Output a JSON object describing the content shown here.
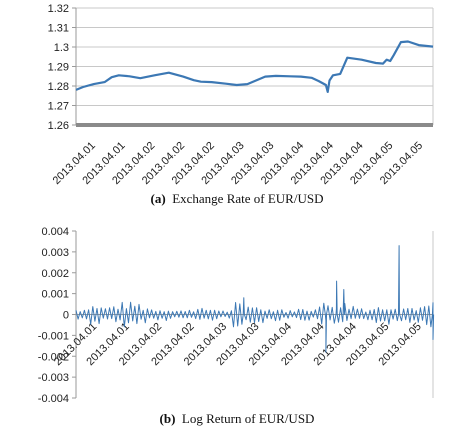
{
  "chart_data": [
    {
      "type": "line",
      "caption_tag": "(a)",
      "caption_text": "Exchange Rate of EUR/USD",
      "ylim": [
        1.26,
        1.32
      ],
      "yticks": [
        1.26,
        1.27,
        1.28,
        1.29,
        1.3,
        1.31,
        1.32
      ],
      "ytick_labels": [
        "1.26",
        "1.27",
        "1.28",
        "1.29",
        "1.3",
        "1.31",
        "1.32"
      ],
      "xtick_labels": [
        "2013.04.01",
        "2013.04.01",
        "2013.04.02",
        "2013.04.02",
        "2013.04.02",
        "2013.04.03",
        "2013.04.03",
        "2013.04.04",
        "2013.04.04",
        "2013.04.04",
        "2013.04.05",
        "2013.04.05"
      ],
      "grid": true,
      "color": "#3c78b4",
      "series": [
        {
          "x": [
            0,
            0.02,
            0.05,
            0.08,
            0.1,
            0.12,
            0.15,
            0.18,
            0.22,
            0.26,
            0.3,
            0.33,
            0.35,
            0.38,
            0.42,
            0.45,
            0.48,
            0.5,
            0.53,
            0.56,
            0.6,
            0.63,
            0.66,
            0.68,
            0.7,
            0.705,
            0.71,
            0.72,
            0.74,
            0.76,
            0.8,
            0.84,
            0.86,
            0.87,
            0.88,
            0.89,
            0.91,
            0.93,
            0.96,
            1.0
          ],
          "values": [
            1.278,
            1.2795,
            1.281,
            1.282,
            1.2845,
            1.2855,
            1.285,
            1.284,
            1.2855,
            1.2868,
            1.2848,
            1.283,
            1.2822,
            1.282,
            1.2812,
            1.2805,
            1.281,
            1.2825,
            1.2848,
            1.2852,
            1.285,
            1.2848,
            1.2842,
            1.2825,
            1.2805,
            1.277,
            1.2828,
            1.2855,
            1.2862,
            1.2945,
            1.2935,
            1.2918,
            1.2915,
            1.2935,
            1.2928,
            1.2958,
            1.3025,
            1.3028,
            1.301,
            1.3002
          ]
        }
      ]
    },
    {
      "type": "line",
      "caption_tag": "(b)",
      "caption_text": "Log Return of EUR/USD",
      "ylim": [
        -0.004,
        0.004
      ],
      "yticks": [
        -0.004,
        -0.003,
        -0.002,
        -0.001,
        0,
        0.001,
        0.002,
        0.003,
        0.004
      ],
      "ytick_labels": [
        "-0.004",
        "-0.003",
        "-0.002",
        "-0.001",
        "0",
        "0.001",
        "0.002",
        "0.003",
        "0.004"
      ],
      "xtick_labels": [
        "2013.04.01",
        "2013.04.01",
        "2013.04.02",
        "2013.04.02",
        "2013.04.03",
        "2013.04.03",
        "2013.04.04",
        "2013.04.04",
        "2013.04.04",
        "2013.04.05",
        "2013.04.05"
      ],
      "grid": false,
      "color": "#3c78b4",
      "series": [
        {
          "x": [
            0.0,
            0.03,
            0.05,
            0.07,
            0.1,
            0.12,
            0.15,
            0.18,
            0.2,
            0.22,
            0.26,
            0.3,
            0.33,
            0.36,
            0.4,
            0.44,
            0.47,
            0.5,
            0.53,
            0.55,
            0.58,
            0.61,
            0.64,
            0.67,
            0.69,
            0.7,
            0.71,
            0.73,
            0.74,
            0.75,
            0.76,
            0.78,
            0.8,
            0.83,
            0.86,
            0.88,
            0.9,
            0.905,
            0.91,
            0.93,
            0.96,
            0.98,
            1.0
          ],
          "values": [
            0.0002,
            -0.0003,
            0.0005,
            -0.0004,
            0.0003,
            -0.0005,
            0.0006,
            -0.0004,
            0.0003,
            -0.0003,
            0.0002,
            -0.0002,
            0.0003,
            -0.0003,
            0.0002,
            -0.0002,
            0.0008,
            -0.0004,
            0.0003,
            -0.0003,
            0.0002,
            -0.0002,
            0.0003,
            -0.0003,
            0.0005,
            -0.0018,
            0.0004,
            0.0016,
            -0.0006,
            0.0012,
            -0.0005,
            0.0004,
            -0.0003,
            0.0003,
            -0.0004,
            0.0005,
            -0.0003,
            0.0033,
            -0.0004,
            0.0004,
            -0.0003,
            0.0004,
            -0.0012
          ]
        }
      ]
    }
  ]
}
